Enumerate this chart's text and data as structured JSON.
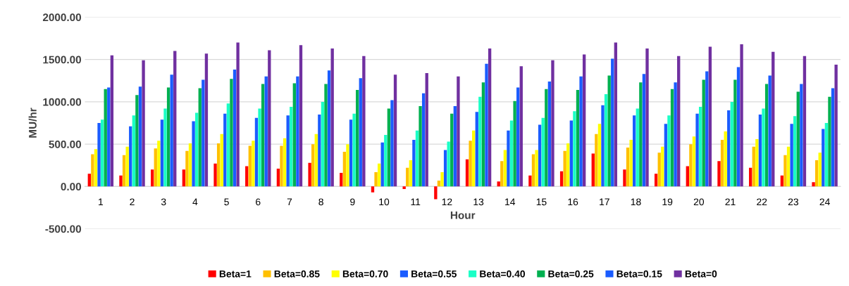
{
  "chart_data": {
    "type": "bar",
    "xlabel": "Hour",
    "ylabel": "MU/hr",
    "categories": [
      "1",
      "2",
      "3",
      "4",
      "5",
      "6",
      "7",
      "8",
      "9",
      "10",
      "11",
      "12",
      "13",
      "14",
      "15",
      "16",
      "17",
      "18",
      "19",
      "20",
      "21",
      "22",
      "23",
      "24"
    ],
    "series": [
      {
        "name": "Beta=1",
        "color": "#ff0000",
        "values": [
          150,
          130,
          200,
          200,
          270,
          240,
          210,
          280,
          160,
          -70,
          -30,
          -150,
          320,
          60,
          130,
          180,
          390,
          200,
          150,
          240,
          300,
          220,
          130,
          50
        ]
      },
      {
        "name": "Beta=0.85",
        "color": "#ffc000",
        "values": [
          380,
          370,
          450,
          420,
          510,
          480,
          480,
          500,
          410,
          170,
          220,
          70,
          540,
          300,
          380,
          420,
          620,
          460,
          400,
          500,
          550,
          470,
          370,
          310
        ]
      },
      {
        "name": "Beta=0.70",
        "color": "#ffff00",
        "values": [
          440,
          470,
          540,
          510,
          620,
          540,
          570,
          620,
          500,
          270,
          310,
          170,
          660,
          430,
          430,
          510,
          740,
          550,
          470,
          590,
          650,
          560,
          470,
          400
        ]
      },
      {
        "name": "Beta=0.55",
        "color": "#1a5cff",
        "values": [
          750,
          710,
          790,
          770,
          860,
          810,
          840,
          850,
          790,
          520,
          550,
          430,
          880,
          660,
          730,
          780,
          960,
          840,
          740,
          860,
          900,
          850,
          740,
          680
        ]
      },
      {
        "name": "Beta=0.40",
        "color": "#1affc6",
        "values": [
          790,
          840,
          920,
          870,
          980,
          920,
          940,
          1000,
          860,
          610,
          660,
          530,
          1060,
          780,
          810,
          890,
          1090,
          920,
          840,
          940,
          1000,
          920,
          830,
          750
        ]
      },
      {
        "name": "Beta=0.25",
        "color": "#00b050",
        "values": [
          1150,
          1080,
          1170,
          1160,
          1270,
          1210,
          1220,
          1210,
          1140,
          920,
          950,
          860,
          1230,
          1010,
          1150,
          1140,
          1310,
          1230,
          1150,
          1260,
          1260,
          1210,
          1120,
          1060
        ]
      },
      {
        "name": "Beta=0.15",
        "color": "#1a5cff",
        "values": [
          1170,
          1180,
          1320,
          1260,
          1380,
          1300,
          1300,
          1370,
          1280,
          1020,
          1100,
          950,
          1450,
          1170,
          1240,
          1300,
          1510,
          1330,
          1230,
          1360,
          1410,
          1310,
          1210,
          1160
        ]
      },
      {
        "name": "Beta=0",
        "color": "#7030a0",
        "values": [
          1550,
          1490,
          1600,
          1570,
          1700,
          1610,
          1670,
          1630,
          1540,
          1320,
          1340,
          1300,
          1630,
          1420,
          1490,
          1560,
          1700,
          1630,
          1540,
          1650,
          1680,
          1590,
          1540,
          1440
        ]
      }
    ],
    "ylim": [
      -500,
      2000
    ],
    "yticks": [
      {
        "value": -500,
        "label": "-500.00"
      },
      {
        "value": 0,
        "label": "0.00"
      },
      {
        "value": 500,
        "label": "500.00"
      },
      {
        "value": 1000,
        "label": "1000.00"
      },
      {
        "value": 1500,
        "label": "1500.00"
      },
      {
        "value": 2000,
        "label": "2000.00"
      }
    ],
    "grid": "y",
    "legend": "bottom"
  }
}
